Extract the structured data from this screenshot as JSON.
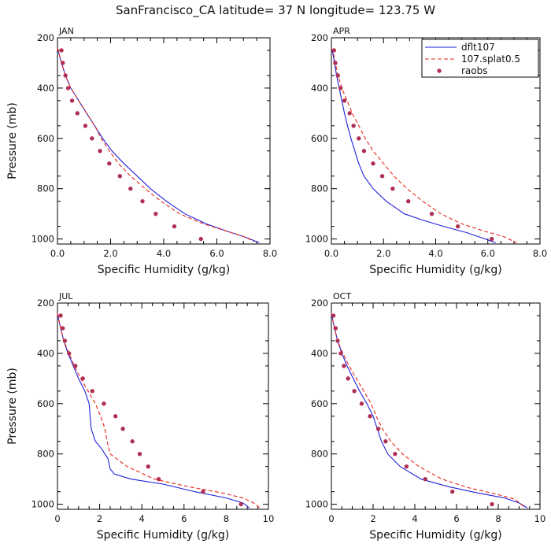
{
  "title": "SanFrancisco_CA  latitude= 37 N longitude= 123.75 W",
  "colors": {
    "model": "#1f1fdd",
    "splat": "#e8261a",
    "raobs": "#b03055",
    "axis": "#000000"
  },
  "legend": [
    {
      "label": "dflt107",
      "style": "solid"
    },
    {
      "label": "107.splat0.5",
      "style": "dashed"
    },
    {
      "label": "raobs",
      "style": "dot"
    }
  ],
  "chart_data": [
    {
      "type": "line",
      "panel": "JAN",
      "xlabel": "Specific Humidity (g/kg)",
      "ylabel": "Pressure (mb)",
      "xlim": [
        0,
        8
      ],
      "ylim": [
        200,
        1020
      ],
      "y_inverted": true,
      "xticks": [
        0,
        2,
        4,
        6,
        8
      ],
      "xticklabels": [
        "0.0",
        "2.0",
        "4.0",
        "6.0",
        "8.0"
      ],
      "yticks": [
        200,
        400,
        600,
        800,
        1000
      ],
      "yticklabels": [
        "200",
        "400",
        "600",
        "800",
        "1000"
      ],
      "series": [
        {
          "name": "dflt107",
          "x": [
            0.0,
            0.05,
            0.15,
            0.3,
            0.5,
            0.8,
            1.1,
            1.4,
            1.7,
            2.05,
            2.5,
            3.0,
            3.5,
            4.1,
            4.8,
            5.6,
            6.4,
            7.0,
            7.6
          ],
          "y": [
            240,
            260,
            300,
            350,
            400,
            450,
            500,
            550,
            600,
            650,
            700,
            750,
            800,
            850,
            900,
            940,
            970,
            990,
            1015
          ]
        },
        {
          "name": "107.splat0.5",
          "x": [
            0.0,
            0.05,
            0.15,
            0.3,
            0.5,
            0.8,
            1.1,
            1.4,
            1.65,
            1.95,
            2.3,
            2.75,
            3.3,
            3.9,
            4.6,
            5.5,
            6.4,
            7.0,
            7.4
          ],
          "y": [
            240,
            260,
            300,
            350,
            400,
            450,
            500,
            550,
            600,
            650,
            700,
            750,
            800,
            850,
            900,
            940,
            970,
            990,
            1010
          ]
        },
        {
          "name": "raobs",
          "x": [
            0.15,
            0.2,
            0.3,
            0.4,
            0.55,
            0.75,
            1.05,
            1.3,
            1.6,
            1.95,
            2.35,
            2.75,
            3.2,
            3.7,
            4.4,
            5.4
          ],
          "y": [
            250,
            300,
            350,
            400,
            450,
            500,
            550,
            600,
            650,
            700,
            750,
            800,
            850,
            900,
            950,
            1000
          ]
        }
      ]
    },
    {
      "type": "line",
      "panel": "APR",
      "xlabel": "Specific Humidity (g/kg)",
      "ylabel": "",
      "xlim": [
        0,
        8
      ],
      "ylim": [
        200,
        1020
      ],
      "y_inverted": true,
      "xticks": [
        0,
        2,
        4,
        6,
        8
      ],
      "xticklabels": [
        "0.0",
        "2.0",
        "4.0",
        "6.0",
        "8.0"
      ],
      "yticks": [
        200,
        400,
        600,
        800,
        1000
      ],
      "yticklabels": [
        "200",
        "400",
        "600",
        "800",
        "1000"
      ],
      "series": [
        {
          "name": "dflt107",
          "x": [
            0.0,
            0.05,
            0.12,
            0.2,
            0.3,
            0.4,
            0.5,
            0.62,
            0.75,
            0.9,
            1.05,
            1.25,
            1.6,
            2.1,
            2.8,
            3.5,
            4.3,
            5.2,
            5.9,
            6.3
          ],
          "y": [
            240,
            260,
            300,
            350,
            400,
            450,
            500,
            550,
            600,
            650,
            700,
            750,
            800,
            850,
            900,
            925,
            950,
            975,
            1000,
            1015
          ]
        },
        {
          "name": "107.splat0.5",
          "x": [
            0.0,
            0.08,
            0.15,
            0.25,
            0.4,
            0.6,
            0.8,
            1.05,
            1.3,
            1.6,
            2.0,
            2.4,
            2.9,
            3.5,
            4.2,
            5.0,
            5.9,
            6.6,
            7.1
          ],
          "y": [
            240,
            260,
            300,
            350,
            400,
            450,
            500,
            550,
            600,
            650,
            700,
            750,
            800,
            850,
            900,
            940,
            970,
            990,
            1015
          ]
        },
        {
          "name": "raobs",
          "x": [
            0.1,
            0.15,
            0.25,
            0.35,
            0.5,
            0.7,
            0.85,
            1.05,
            1.25,
            1.6,
            1.95,
            2.35,
            2.95,
            3.85,
            4.85,
            6.15
          ],
          "y": [
            250,
            300,
            350,
            400,
            450,
            500,
            550,
            600,
            650,
            700,
            750,
            800,
            850,
            900,
            950,
            1000
          ]
        }
      ]
    },
    {
      "type": "line",
      "panel": "JUL",
      "xlabel": "Specific Humidity (g/kg)",
      "ylabel": "Pressure (mb)",
      "xlim": [
        0,
        10
      ],
      "ylim": [
        200,
        1020
      ],
      "y_inverted": true,
      "xticks": [
        0,
        2,
        4,
        6,
        8,
        10
      ],
      "xticklabels": [
        "0",
        "2",
        "4",
        "6",
        "8",
        "10"
      ],
      "yticks": [
        200,
        400,
        600,
        800,
        1000
      ],
      "yticklabels": [
        "200",
        "400",
        "600",
        "800",
        "1000"
      ],
      "series": [
        {
          "name": "dflt107",
          "x": [
            0.0,
            0.05,
            0.15,
            0.3,
            0.5,
            0.75,
            1.0,
            1.3,
            1.5,
            1.55,
            1.6,
            1.8,
            2.1,
            2.4,
            2.5,
            2.7,
            3.5,
            5.0,
            6.5,
            8.0,
            8.8,
            9.1
          ],
          "y": [
            240,
            260,
            300,
            350,
            400,
            450,
            500,
            550,
            600,
            650,
            700,
            750,
            780,
            820,
            860,
            880,
            900,
            920,
            950,
            975,
            995,
            1015
          ]
        },
        {
          "name": "107.splat0.5",
          "x": [
            0.0,
            0.05,
            0.15,
            0.3,
            0.55,
            0.8,
            1.1,
            1.45,
            1.8,
            2.05,
            2.25,
            2.35,
            2.5,
            3.3,
            4.6,
            6.2,
            7.8,
            8.8,
            9.3,
            9.6
          ],
          "y": [
            240,
            260,
            300,
            350,
            400,
            450,
            500,
            550,
            600,
            650,
            700,
            750,
            800,
            850,
            900,
            930,
            955,
            975,
            995,
            1015
          ]
        },
        {
          "name": "raobs",
          "x": [
            0.15,
            0.25,
            0.35,
            0.55,
            0.85,
            1.2,
            1.65,
            2.2,
            2.75,
            3.1,
            3.55,
            3.9,
            4.3,
            4.8,
            6.9,
            8.7
          ],
          "y": [
            250,
            300,
            350,
            400,
            450,
            500,
            550,
            600,
            650,
            700,
            750,
            800,
            850,
            900,
            950,
            1000
          ]
        }
      ]
    },
    {
      "type": "line",
      "panel": "OCT",
      "xlabel": "Specific Humidity (g/kg)",
      "ylabel": "",
      "xlim": [
        0,
        10
      ],
      "ylim": [
        200,
        1020
      ],
      "y_inverted": true,
      "xticks": [
        0,
        2,
        4,
        6,
        8,
        10
      ],
      "xticklabels": [
        "0",
        "2",
        "4",
        "6",
        "8",
        "10"
      ],
      "yticks": [
        200,
        400,
        600,
        800,
        1000
      ],
      "yticklabels": [
        "200",
        "400",
        "600",
        "800",
        "1000"
      ],
      "series": [
        {
          "name": "dflt107",
          "x": [
            0.0,
            0.05,
            0.15,
            0.3,
            0.5,
            0.75,
            1.05,
            1.35,
            1.7,
            2.0,
            2.2,
            2.4,
            2.7,
            3.3,
            4.3,
            5.6,
            7.0,
            8.3,
            9.0,
            9.4
          ],
          "y": [
            240,
            260,
            300,
            350,
            400,
            450,
            500,
            550,
            600,
            650,
            700,
            750,
            800,
            850,
            900,
            930,
            955,
            975,
            995,
            1015
          ]
        },
        {
          "name": "107.splat0.5",
          "x": [
            0.0,
            0.05,
            0.15,
            0.3,
            0.55,
            0.85,
            1.2,
            1.55,
            1.9,
            2.15,
            2.45,
            2.85,
            3.4,
            4.2,
            5.3,
            6.6,
            7.9,
            8.8,
            9.3
          ],
          "y": [
            240,
            260,
            300,
            350,
            400,
            450,
            500,
            550,
            600,
            650,
            700,
            750,
            800,
            850,
            900,
            935,
            960,
            980,
            1015
          ]
        },
        {
          "name": "raobs",
          "x": [
            0.1,
            0.2,
            0.3,
            0.45,
            0.6,
            0.8,
            1.1,
            1.45,
            1.85,
            2.25,
            2.6,
            3.05,
            3.6,
            4.5,
            5.8,
            7.7
          ],
          "y": [
            250,
            300,
            350,
            400,
            450,
            500,
            550,
            600,
            650,
            700,
            750,
            800,
            850,
            900,
            950,
            1000
          ]
        }
      ]
    }
  ]
}
